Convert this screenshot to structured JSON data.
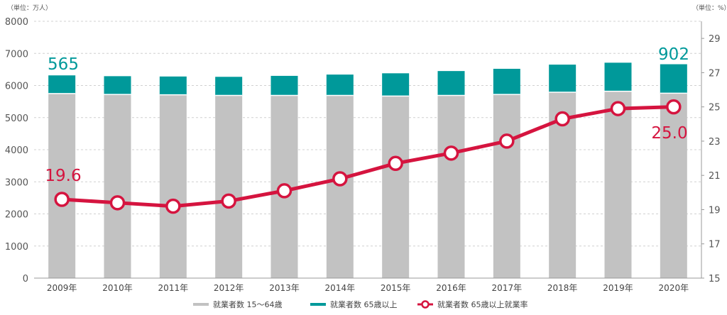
{
  "chart_data": {
    "type": "bar",
    "left_unit": "（単位：万人）",
    "right_unit": "（単位：%）",
    "categories": [
      "2009年",
      "2010年",
      "2011年",
      "2012年",
      "2013年",
      "2014年",
      "2015年",
      "2016年",
      "2017年",
      "2018年",
      "2019年",
      "2020年"
    ],
    "series": [
      {
        "name": "就業者数 15～64歳",
        "axis": "left",
        "stack": "workers",
        "color": "#c2c2c2",
        "values": [
          5750,
          5720,
          5710,
          5690,
          5690,
          5690,
          5670,
          5690,
          5720,
          5790,
          5820,
          5760
        ]
      },
      {
        "name": "就業者数 65歳以上",
        "axis": "left",
        "stack": "workers",
        "color": "#00999a",
        "values": [
          565,
          570,
          570,
          580,
          610,
          650,
          710,
          760,
          800,
          860,
          890,
          902
        ]
      },
      {
        "name": "就業者数 65歳以上就業率",
        "axis": "right",
        "type": "line",
        "color": "#d5143f",
        "values": [
          19.6,
          19.4,
          19.2,
          19.5,
          20.1,
          20.8,
          21.7,
          22.3,
          23.0,
          24.3,
          24.9,
          25.0
        ]
      }
    ],
    "y_left": {
      "min": 0,
      "max": 8000,
      "ticks": [
        0,
        1000,
        2000,
        3000,
        4000,
        5000,
        6000,
        7000,
        8000
      ]
    },
    "y_right": {
      "min": 15,
      "max": 30,
      "ticks": [
        15,
        17,
        19,
        21,
        23,
        25,
        27,
        29
      ]
    },
    "annotations": {
      "first_teal": "565",
      "last_teal": "902",
      "first_line": "19.6",
      "last_line": "25.0"
    },
    "legend": [
      {
        "label": "就業者数 15～64歳",
        "kind": "bar-gray"
      },
      {
        "label": "就業者数 65歳以上",
        "kind": "bar-teal"
      },
      {
        "label": "就業者数 65歳以上就業率",
        "kind": "line-red"
      }
    ],
    "grid": true,
    "legend_position": "bottom"
  }
}
